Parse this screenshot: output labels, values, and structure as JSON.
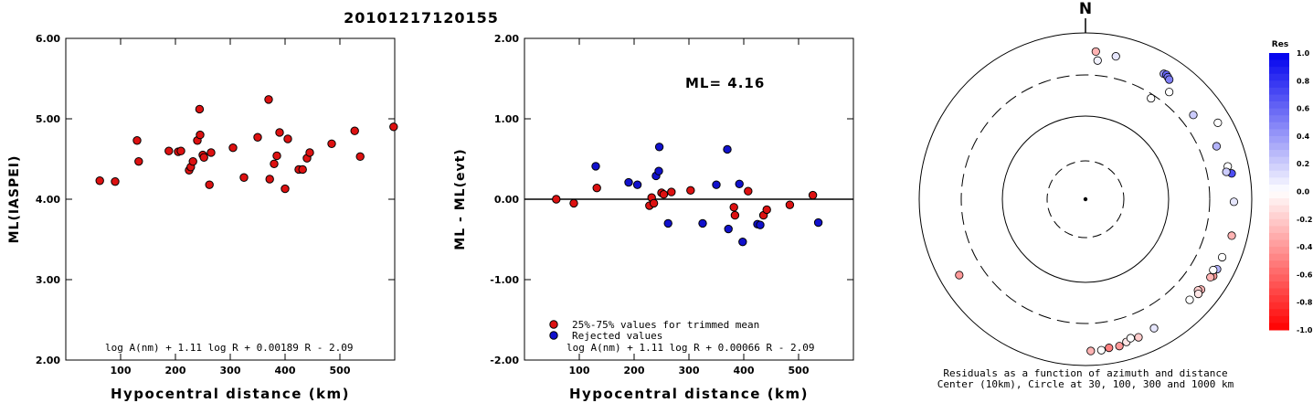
{
  "title": "20101217120155",
  "chart_data": [
    {
      "type": "scatter",
      "xlabel": "Hypocentral distance (km)",
      "ylabel": "ML(IASPEI)",
      "xlim": [
        0,
        600
      ],
      "ylim": [
        2.0,
        6.0
      ],
      "xticks": [
        "100",
        "200",
        "300",
        "400",
        "500"
      ],
      "yticks": [
        "2.00",
        "3.00",
        "4.00",
        "5.00",
        "6.00"
      ],
      "formula": "log A(nm) + 1.11 log R + 0.00189 R - 2.09",
      "point_color": "#dd1111",
      "points": [
        [
          62,
          4.23
        ],
        [
          90,
          4.22
        ],
        [
          130,
          4.73
        ],
        [
          133,
          4.47
        ],
        [
          188,
          4.6
        ],
        [
          205,
          4.59
        ],
        [
          210,
          4.6
        ],
        [
          225,
          4.36
        ],
        [
          228,
          4.4
        ],
        [
          232,
          4.47
        ],
        [
          240,
          4.73
        ],
        [
          244,
          5.12
        ],
        [
          245,
          4.8
        ],
        [
          250,
          4.55
        ],
        [
          252,
          4.52
        ],
        [
          262,
          4.18
        ],
        [
          265,
          4.58
        ],
        [
          305,
          4.64
        ],
        [
          325,
          4.27
        ],
        [
          350,
          4.77
        ],
        [
          370,
          5.24
        ],
        [
          372,
          4.25
        ],
        [
          380,
          4.44
        ],
        [
          385,
          4.54
        ],
        [
          390,
          4.83
        ],
        [
          400,
          4.13
        ],
        [
          405,
          4.75
        ],
        [
          425,
          4.37
        ],
        [
          432,
          4.37
        ],
        [
          440,
          4.51
        ],
        [
          445,
          4.58
        ],
        [
          485,
          4.69
        ],
        [
          527,
          4.85
        ],
        [
          537,
          4.53
        ],
        [
          598,
          4.9
        ]
      ]
    },
    {
      "type": "scatter",
      "xlabel": "Hypocentral distance (km)",
      "ylabel": "ML - ML(evt)",
      "xlim": [
        0,
        600
      ],
      "ylim": [
        -2.0,
        2.0
      ],
      "xticks": [
        "100",
        "200",
        "300",
        "400",
        "500"
      ],
      "yticks": [
        "-2.00",
        "-1.00",
        "0.00",
        "1.00",
        "2.00"
      ],
      "annotation": "ML= 4.16",
      "formula": "log A(nm) + 1.11 log R + 0.00066 R - 2.09",
      "legend": [
        {
          "label": "25%-75% values for trimmed mean",
          "color": "#dd1111"
        },
        {
          "label": "Rejected values",
          "color": "#1111cc"
        }
      ],
      "series": [
        {
          "name": "25%-75% values for trimmed mean",
          "color": "#dd1111",
          "points": [
            [
              58,
              0.0
            ],
            [
              90,
              -0.05
            ],
            [
              132,
              0.14
            ],
            [
              228,
              -0.08
            ],
            [
              232,
              0.02
            ],
            [
              236,
              -0.05
            ],
            [
              250,
              0.08
            ],
            [
              254,
              0.06
            ],
            [
              268,
              0.09
            ],
            [
              303,
              0.11
            ],
            [
              382,
              -0.1
            ],
            [
              384,
              -0.2
            ],
            [
              408,
              0.1
            ],
            [
              436,
              -0.2
            ],
            [
              442,
              -0.13
            ],
            [
              484,
              -0.07
            ],
            [
              526,
              0.05
            ]
          ]
        },
        {
          "name": "Rejected values",
          "color": "#1111cc",
          "points": [
            [
              130,
              0.41
            ],
            [
              190,
              0.21
            ],
            [
              206,
              0.18
            ],
            [
              240,
              0.29
            ],
            [
              245,
              0.35
            ],
            [
              246,
              0.65
            ],
            [
              262,
              -0.3
            ],
            [
              325,
              -0.3
            ],
            [
              350,
              0.18
            ],
            [
              370,
              0.62
            ],
            [
              372,
              -0.37
            ],
            [
              392,
              0.19
            ],
            [
              398,
              -0.53
            ],
            [
              425,
              -0.31
            ],
            [
              430,
              -0.32
            ],
            [
              536,
              -0.29
            ]
          ]
        }
      ]
    },
    {
      "type": "scatter",
      "subtype": "polar-residuals",
      "north_label": "N",
      "caption_line1": "Residuals as a function of azimuth and distance",
      "caption_line2": "Center (10km), Circle at 30, 100, 300 and 1000 km",
      "circles_km": [
        30,
        100,
        300,
        1000
      ],
      "colorbar": {
        "title": "Res",
        "ticks": [
          "1.0",
          "0.8",
          "0.6",
          "0.4",
          "0.2",
          "0.0",
          "-0.2",
          "-0.4",
          "-0.6",
          "-0.8",
          "-1.0"
        ],
        "max_color": "#0000ee",
        "zero_color": "#ffffff",
        "min_color": "#ff0000"
      },
      "stations": [
        {
          "az": 4,
          "dist": 592,
          "res": -0.3
        },
        {
          "az": 12,
          "dist": 560,
          "res": 0.1
        },
        {
          "az": 5,
          "dist": 460,
          "res": 0.05
        },
        {
          "az": 32,
          "dist": 590,
          "res": 0.4
        },
        {
          "az": 33,
          "dist": 600,
          "res": 0.6
        },
        {
          "az": 34,
          "dist": 580,
          "res": 0.55
        },
        {
          "az": 35,
          "dist": 560,
          "res": 0.5
        },
        {
          "az": 38,
          "dist": 420,
          "res": 0.0
        },
        {
          "az": 60,
          "dist": 680,
          "res": 0.0
        },
        {
          "az": 52,
          "dist": 430,
          "res": 0.2
        },
        {
          "az": 33,
          "dist": 270,
          "res": 0.0
        },
        {
          "az": 80,
          "dist": 600,
          "res": 0.7
        },
        {
          "az": 68,
          "dist": 490,
          "res": 0.3
        },
        {
          "az": 77,
          "dist": 560,
          "res": 0.0
        },
        {
          "az": 79,
          "dist": 520,
          "res": 0.2
        },
        {
          "az": 91,
          "dist": 600,
          "res": 0.1
        },
        {
          "az": 104,
          "dist": 640,
          "res": -0.3
        },
        {
          "az": 113,
          "dist": 600,
          "res": 0.0
        },
        {
          "az": 118,
          "dist": 610,
          "res": 0.3
        },
        {
          "az": 121,
          "dist": 610,
          "res": -0.4
        },
        {
          "az": 122,
          "dist": 580,
          "res": -0.3
        },
        {
          "az": 119,
          "dist": 560,
          "res": 0.0
        },
        {
          "az": 128,
          "dist": 570,
          "res": -0.3
        },
        {
          "az": 129,
          "dist": 540,
          "res": -0.2
        },
        {
          "az": 130,
          "dist": 580,
          "res": -0.1
        },
        {
          "az": 134,
          "dist": 540,
          "res": 0.0
        },
        {
          "az": 152,
          "dist": 560,
          "res": 0.1
        },
        {
          "az": 159,
          "dist": 590,
          "res": -0.2
        },
        {
          "az": 164,
          "dist": 600,
          "res": -0.1
        },
        {
          "az": 162,
          "dist": 560,
          "res": 0.0
        },
        {
          "az": 167,
          "dist": 640,
          "res": -0.4
        },
        {
          "az": 171,
          "dist": 635,
          "res": -0.5
        },
        {
          "az": 174,
          "dist": 660,
          "res": 0.0
        },
        {
          "az": 178,
          "dist": 660,
          "res": -0.3
        },
        {
          "az": 239,
          "dist": 580,
          "res": -0.4
        }
      ]
    }
  ]
}
